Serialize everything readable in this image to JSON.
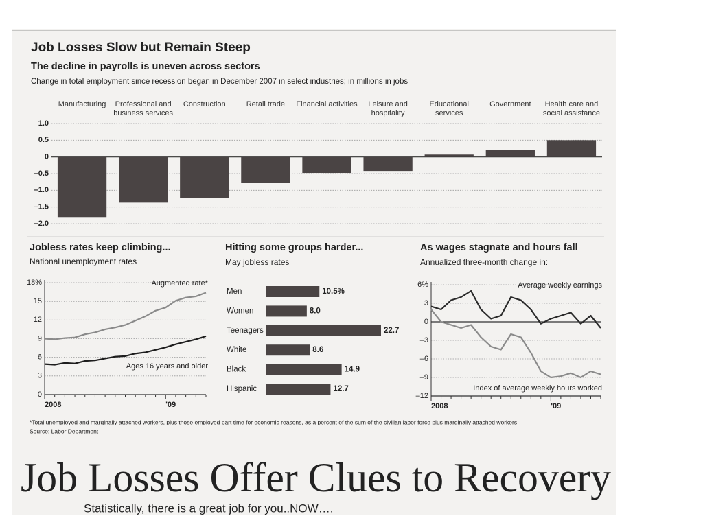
{
  "chart_data": [
    {
      "type": "bar",
      "title": "Job Losses Slow but Remain Steep",
      "subtitle": "The decline in payrolls is uneven across sectors",
      "description": "Change in total employment since recession began in December 2007 in select industries; in millions in jobs",
      "categories": [
        "Manufacturing",
        "Professional and business services",
        "Construction",
        "Retail trade",
        "Financial activities",
        "Leisure and hospitality",
        "Educational services",
        "Government",
        "Health care and social assistance"
      ],
      "values": [
        -1.8,
        -1.37,
        -1.23,
        -0.78,
        -0.48,
        -0.42,
        0.07,
        0.2,
        0.5
      ],
      "color": "#4a4444",
      "ylim": [
        -2,
        1
      ],
      "yticks": [
        {
          "value": 1,
          "label": "1.0"
        },
        0.5,
        0,
        {
          "value": -0.5,
          "label": "–0.5"
        },
        {
          "value": -1,
          "label": "–1.0"
        },
        {
          "value": -1.5,
          "label": "–1.5"
        },
        {
          "value": -2,
          "label": "–2.0"
        }
      ],
      "grid": true
    },
    {
      "type": "line",
      "title": "Jobless rates keep climbing...",
      "subtitle": "National unemployment rates",
      "categories": [
        "2008",
        null,
        null,
        null,
        null,
        null,
        null,
        null,
        null,
        null,
        null,
        null,
        "'09",
        null,
        null,
        null,
        null
      ],
      "series": [
        {
          "name": "Augmented rate*",
          "color": "#8a8a8a",
          "values": [
            9.0,
            8.9,
            9.1,
            9.2,
            9.7,
            10.0,
            10.5,
            10.8,
            11.2,
            11.9,
            12.6,
            13.5,
            14.0,
            15.1,
            15.6,
            15.8,
            16.4
          ]
        },
        {
          "name": "Ages 16 years and older",
          "color": "#1e1e1e",
          "values": [
            4.9,
            4.8,
            5.1,
            5.0,
            5.4,
            5.5,
            5.8,
            6.1,
            6.2,
            6.6,
            6.8,
            7.2,
            7.6,
            8.1,
            8.5,
            8.9,
            9.4
          ]
        }
      ],
      "ylim": [
        0,
        18
      ],
      "yticks": [
        0,
        3,
        6,
        9,
        12,
        15,
        {
          "value": 18,
          "label": "18%"
        }
      ],
      "grid": true
    },
    {
      "type": "hbar",
      "title": "Hitting some groups harder...",
      "subtitle": "May jobless rates",
      "categories": [
        "Men",
        "Women",
        "Teenagers",
        "White",
        "Black",
        "Hispanic"
      ],
      "values": [
        10.5,
        8.0,
        22.7,
        8.6,
        14.9,
        12.7
      ],
      "value_labels": [
        "10.5%",
        "8.0",
        "22.7",
        "8.6",
        "14.9",
        "12.7"
      ],
      "color": "#4a4444"
    },
    {
      "type": "line",
      "title": "As wages stagnate and hours fall",
      "subtitle": "Annualized three-month change in:",
      "categories": [
        "2008",
        null,
        null,
        null,
        null,
        null,
        null,
        null,
        null,
        null,
        null,
        null,
        "'09",
        null,
        null,
        null,
        null,
        null
      ],
      "series": [
        {
          "name": "Average weekly earnings",
          "color": "#2a2a2a",
          "values": [
            2.5,
            2,
            3.5,
            4,
            5,
            2,
            0.5,
            1,
            4,
            3.5,
            2,
            -0.3,
            0.5,
            1,
            1.5,
            -0.3,
            1,
            -1
          ]
        },
        {
          "name": "Index of average weekly hours worked",
          "color": "#8a8a8a",
          "values": [
            2,
            0,
            -0.5,
            -1,
            -0.5,
            -2.5,
            -4,
            -4.5,
            -2,
            -2.5,
            -5,
            -8,
            -9,
            -8.8,
            -8.3,
            -9,
            -8,
            -8.5
          ]
        }
      ],
      "ylim": [
        -12,
        6
      ],
      "yticks": [
        {
          "value": 6,
          "label": "6%"
        },
        3,
        0,
        {
          "value": -3,
          "label": "–3"
        },
        {
          "value": -6,
          "label": "–6"
        },
        {
          "value": -9,
          "label": "–9"
        },
        {
          "value": -12,
          "label": "–12"
        }
      ],
      "grid": true
    }
  ],
  "footnote": "*Total unemployed and marginally attached workers, plus those employed part time for economic reasons, as a percent of the sum of the civilian labor force plus marginally attached workers",
  "source": "Source: Labor Department",
  "headline": "Job Losses Offer Clues to Recovery",
  "caption": "Statistically, there is a great job for you..NOW…."
}
